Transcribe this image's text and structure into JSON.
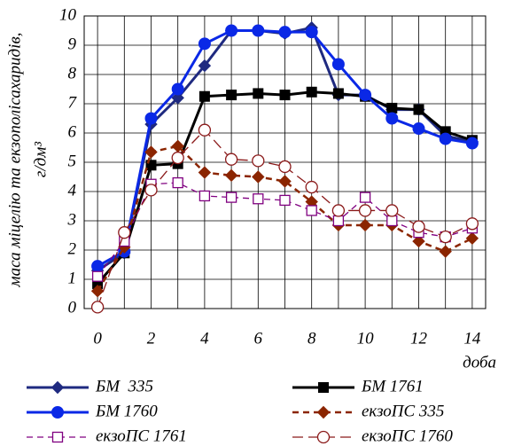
{
  "chart_data": {
    "type": "line",
    "y_label": "маса міцелію та екзополісахаридів,",
    "y_label_unit": "г/дм³",
    "x_label": "доба",
    "x": [
      0,
      1,
      2,
      3,
      4,
      5,
      6,
      7,
      8,
      9,
      10,
      11,
      12,
      13,
      14
    ],
    "xlim": [
      -0.5,
      14.5
    ],
    "xticks": [
      0,
      2,
      4,
      6,
      8,
      10,
      12,
      14
    ],
    "ylim": [
      0,
      10
    ],
    "yticks": [
      0,
      1,
      2,
      3,
      4,
      5,
      6,
      7,
      8,
      9,
      10
    ],
    "grid": true,
    "legend": "bottom",
    "series": [
      {
        "name": "БМ  335",
        "color": "#1f2a80",
        "marker": "diamond",
        "filled": true,
        "line_style": "solid",
        "values": [
          1.3,
          1.9,
          6.3,
          7.2,
          8.3,
          9.5,
          9.5,
          9.4,
          9.6,
          7.3,
          7.3,
          6.8,
          6.8,
          5.9,
          5.7
        ]
      },
      {
        "name": "БМ 1761",
        "color": "#000000",
        "marker": "square",
        "filled": true,
        "line_style": "solid",
        "values": [
          0.85,
          1.9,
          4.9,
          4.95,
          7.25,
          7.3,
          7.35,
          7.3,
          7.4,
          7.35,
          7.25,
          6.85,
          6.8,
          6.05,
          5.75
        ]
      },
      {
        "name": "БМ 1760",
        "color": "#0a28e6",
        "marker": "circle",
        "filled": true,
        "line_style": "solid",
        "values": [
          1.45,
          1.95,
          6.5,
          7.5,
          9.05,
          9.5,
          9.5,
          9.45,
          9.45,
          8.35,
          7.3,
          6.5,
          6.15,
          5.8,
          5.65
        ]
      },
      {
        "name": "екзоПС 335",
        "color": "#8b2500",
        "marker": "diamond",
        "filled": true,
        "line_style": "dashed",
        "values": [
          0.6,
          2.1,
          5.35,
          5.55,
          4.65,
          4.55,
          4.5,
          4.35,
          3.65,
          2.85,
          2.85,
          2.85,
          2.3,
          1.95,
          2.4
        ]
      },
      {
        "name": "екзоПС 1761",
        "color": "#800080",
        "marker": "square",
        "filled": false,
        "line_style": "dashed",
        "values": [
          1.1,
          2.3,
          4.25,
          4.3,
          3.85,
          3.8,
          3.75,
          3.7,
          3.35,
          3.0,
          3.8,
          3.0,
          2.6,
          2.45,
          2.75
        ]
      },
      {
        "name": "екзоПС 1760",
        "color": "#8b1a1a",
        "marker": "circle",
        "filled": false,
        "line_style": "long-dashed",
        "values": [
          0.05,
          2.6,
          4.05,
          5.15,
          6.1,
          5.1,
          5.05,
          4.85,
          4.15,
          3.35,
          3.35,
          3.35,
          2.8,
          2.45,
          2.9
        ]
      }
    ]
  }
}
